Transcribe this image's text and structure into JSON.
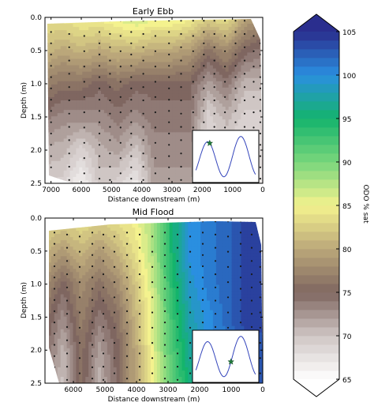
{
  "chart_data": [
    {
      "type": "contour",
      "title": "Early Ebb",
      "xlabel": "Distance downstream (m)",
      "ylabel": "Depth (m)",
      "xlim": [
        7200,
        0
      ],
      "ylim": [
        2.5,
        0.0
      ],
      "x_ticks": [
        7000,
        6000,
        5000,
        4000,
        3000,
        2000,
        1000,
        0
      ],
      "y_ticks": [
        0.0,
        0.5,
        1.0,
        1.5,
        2.0,
        2.5
      ],
      "x_tick_labels": [
        "7000",
        "6000",
        "5000",
        "4000",
        "3000",
        "2000",
        "1000",
        "0"
      ],
      "y_tick_labels": [
        "0.0",
        "0.5",
        "1.0",
        "1.5",
        "2.0",
        "2.5"
      ],
      "odo_field": {
        "x_nodes": [
          7200,
          6600,
          6000,
          5400,
          4800,
          4200,
          3600,
          3000,
          2400,
          1800,
          1200,
          600,
          0
        ],
        "depth_nodes": [
          0.0,
          0.5,
          1.0,
          1.5,
          2.0,
          2.5
        ],
        "values": [
          [
            84,
            84,
            85,
            85,
            86,
            87,
            86,
            86,
            85,
            83,
            84,
            80,
            78
          ],
          [
            81,
            80,
            81,
            80,
            81,
            81,
            80,
            80,
            79,
            76,
            78,
            75,
            74
          ],
          [
            77,
            76,
            76,
            75,
            76,
            75,
            75,
            75,
            75,
            72,
            74,
            71,
            71
          ],
          [
            74,
            73,
            73,
            73,
            74,
            73,
            74,
            74,
            74,
            69,
            71,
            69,
            69
          ],
          [
            71,
            71,
            69,
            71,
            72,
            70,
            73,
            73,
            73,
            68,
            69,
            68,
            68
          ],
          [
            70,
            69,
            66,
            70,
            69,
            67,
            72,
            72,
            72,
            67,
            68,
            67,
            67
          ]
        ]
      },
      "sample_profile_x": [
        7000,
        6400,
        5900,
        5400,
        5050,
        4700,
        4350,
        3950,
        3550,
        3100,
        2700,
        2300,
        1950,
        1600,
        1250,
        900,
        600,
        300,
        80
      ],
      "inset_tidal_marker": {
        "phase": 0.26,
        "level": 0.7,
        "marker": "star",
        "color": "#1f7a3a"
      }
    },
    {
      "type": "contour",
      "title": "Mid Flood",
      "xlabel": "Distance downstream (m)",
      "ylabel": "Depth (m)",
      "xlim": [
        6900,
        0
      ],
      "ylim": [
        2.5,
        0.0
      ],
      "x_ticks": [
        6000,
        5000,
        4000,
        3000,
        2000,
        1000,
        0
      ],
      "y_ticks": [
        0.0,
        0.5,
        1.0,
        1.5,
        2.0,
        2.5
      ],
      "x_tick_labels": [
        "6000",
        "5000",
        "4000",
        "3000",
        "2000",
        "1000",
        "0"
      ],
      "y_tick_labels": [
        "0.0",
        "0.5",
        "1.0",
        "1.5",
        "2.0",
        "2.5"
      ],
      "odo_field": {
        "x_nodes": [
          6900,
          6300,
          5700,
          5100,
          4500,
          3900,
          3300,
          2700,
          2100,
          1500,
          900,
          300,
          0
        ],
        "depth_nodes": [
          0.0,
          0.5,
          1.0,
          1.5,
          2.0,
          2.5
        ],
        "values": [
          [
            84,
            83,
            84,
            83,
            84,
            85,
            88,
            95,
            100,
            101,
            102,
            104,
            104
          ],
          [
            81,
            79,
            81,
            79,
            81,
            84,
            88,
            95,
            100,
            101,
            102,
            104,
            104
          ],
          [
            78,
            75,
            78,
            76,
            78,
            82,
            87,
            94,
            99,
            101,
            102,
            104,
            104
          ],
          [
            76,
            73,
            77,
            74,
            76,
            81,
            86,
            93,
            98,
            100,
            102,
            104,
            104
          ],
          [
            75,
            71,
            76,
            72,
            75,
            80,
            86,
            92,
            97,
            100,
            101,
            103,
            103
          ],
          [
            75,
            70,
            76,
            71,
            75,
            80,
            85,
            91,
            96,
            99,
            101,
            103,
            103
          ]
        ]
      },
      "sample_profile_x": [
        6600,
        6200,
        5800,
        5400,
        5050,
        4700,
        4300,
        3900,
        3500,
        3100,
        2700,
        2300,
        1900,
        1500,
        1100,
        700,
        350,
        80
      ],
      "inset_tidal_marker": {
        "phase": 0.58,
        "level": 0.35,
        "marker": "star",
        "color": "#1f7a3a"
      }
    }
  ],
  "colorbar": {
    "label": "ODO % sat",
    "min": 65,
    "max": 105,
    "tick_values": [
      65,
      70,
      75,
      80,
      85,
      90,
      95,
      100,
      105
    ],
    "tick_labels": [
      "65",
      "70",
      "75",
      "80",
      "85",
      "90",
      "95",
      "100",
      "105"
    ],
    "colormap_stops": [
      {
        "v": 65,
        "c": "#ffffff"
      },
      {
        "v": 70,
        "c": "#cfc6c4"
      },
      {
        "v": 75,
        "c": "#7f6660"
      },
      {
        "v": 80,
        "c": "#bba77a"
      },
      {
        "v": 85,
        "c": "#f4f28e"
      },
      {
        "v": 90,
        "c": "#79d67c"
      },
      {
        "v": 95,
        "c": "#14b46c"
      },
      {
        "v": 100,
        "c": "#2a8fe0"
      },
      {
        "v": 105,
        "c": "#2a2e8e"
      }
    ]
  }
}
